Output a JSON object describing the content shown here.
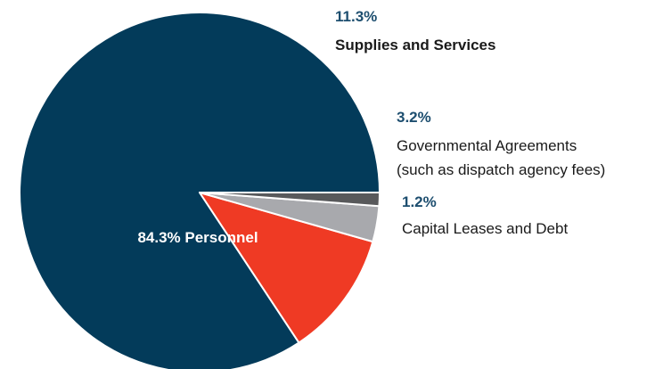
{
  "chart_data": {
    "type": "pie",
    "slices": [
      {
        "key": "personnel",
        "value": 84.3,
        "percent_label": "84.3%",
        "name": "Personnel",
        "inner_label": "84.3% Personnel",
        "color": "#033b5a"
      },
      {
        "key": "supplies",
        "value": 11.3,
        "percent_label": "11.3%",
        "name": "Supplies and Services",
        "color": "#ef3a24"
      },
      {
        "key": "agreements",
        "value": 3.2,
        "percent_label": "3.2%",
        "name_lines": [
          "Governmental Agreements",
          "(such as dispatch agency fees)"
        ],
        "color": "#a8a9ad"
      },
      {
        "key": "leases",
        "value": 1.2,
        "percent_label": "1.2%",
        "name": "Capital Leases and Debt",
        "color": "#58595b"
      }
    ],
    "start_angle_deg": 0,
    "direction": "counterclockwise",
    "percent_label_color": "#1d4e6f",
    "label_color": "#1a1a1a"
  }
}
